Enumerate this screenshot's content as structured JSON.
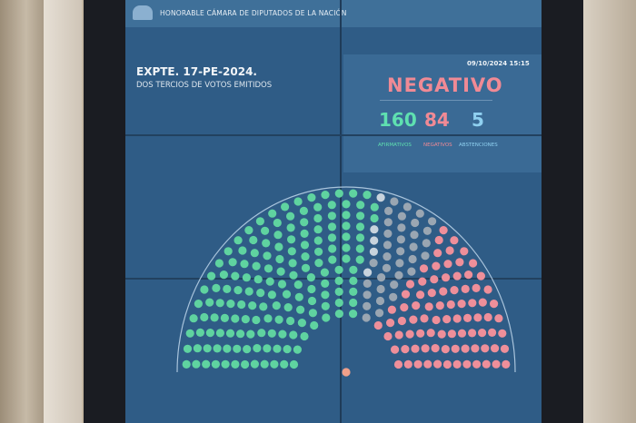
{
  "header": {
    "title": "HONORABLE CÁMARA DE DIPUTADOS DE LA NACIÓN",
    "logo": "hcdn-logo"
  },
  "expediente": "EXPTE. 17-PE-2024.",
  "mayoria": "DOS TERCIOS DE VOTOS EMITIDOS",
  "fecha": "09/10/2024 15:15",
  "resultado": "NEGATIVO",
  "votos": {
    "afirmativos": {
      "count": "160",
      "label": "AFIRMATIVOS",
      "color": "#5fe0b0"
    },
    "negativos": {
      "count": "84",
      "label": "NEGATIVOS",
      "color": "#f08a95"
    },
    "abstenciones": {
      "count": "5",
      "label": "ABSTENCIONES",
      "color": "#8fd0f0"
    }
  },
  "colors": {
    "screen": "#2f5c86",
    "afirmativo": "#5fd3a0",
    "negativo": "#ee8f9a",
    "abstencion": "#c8d3dd",
    "ausente": "#9aa6b2"
  }
}
